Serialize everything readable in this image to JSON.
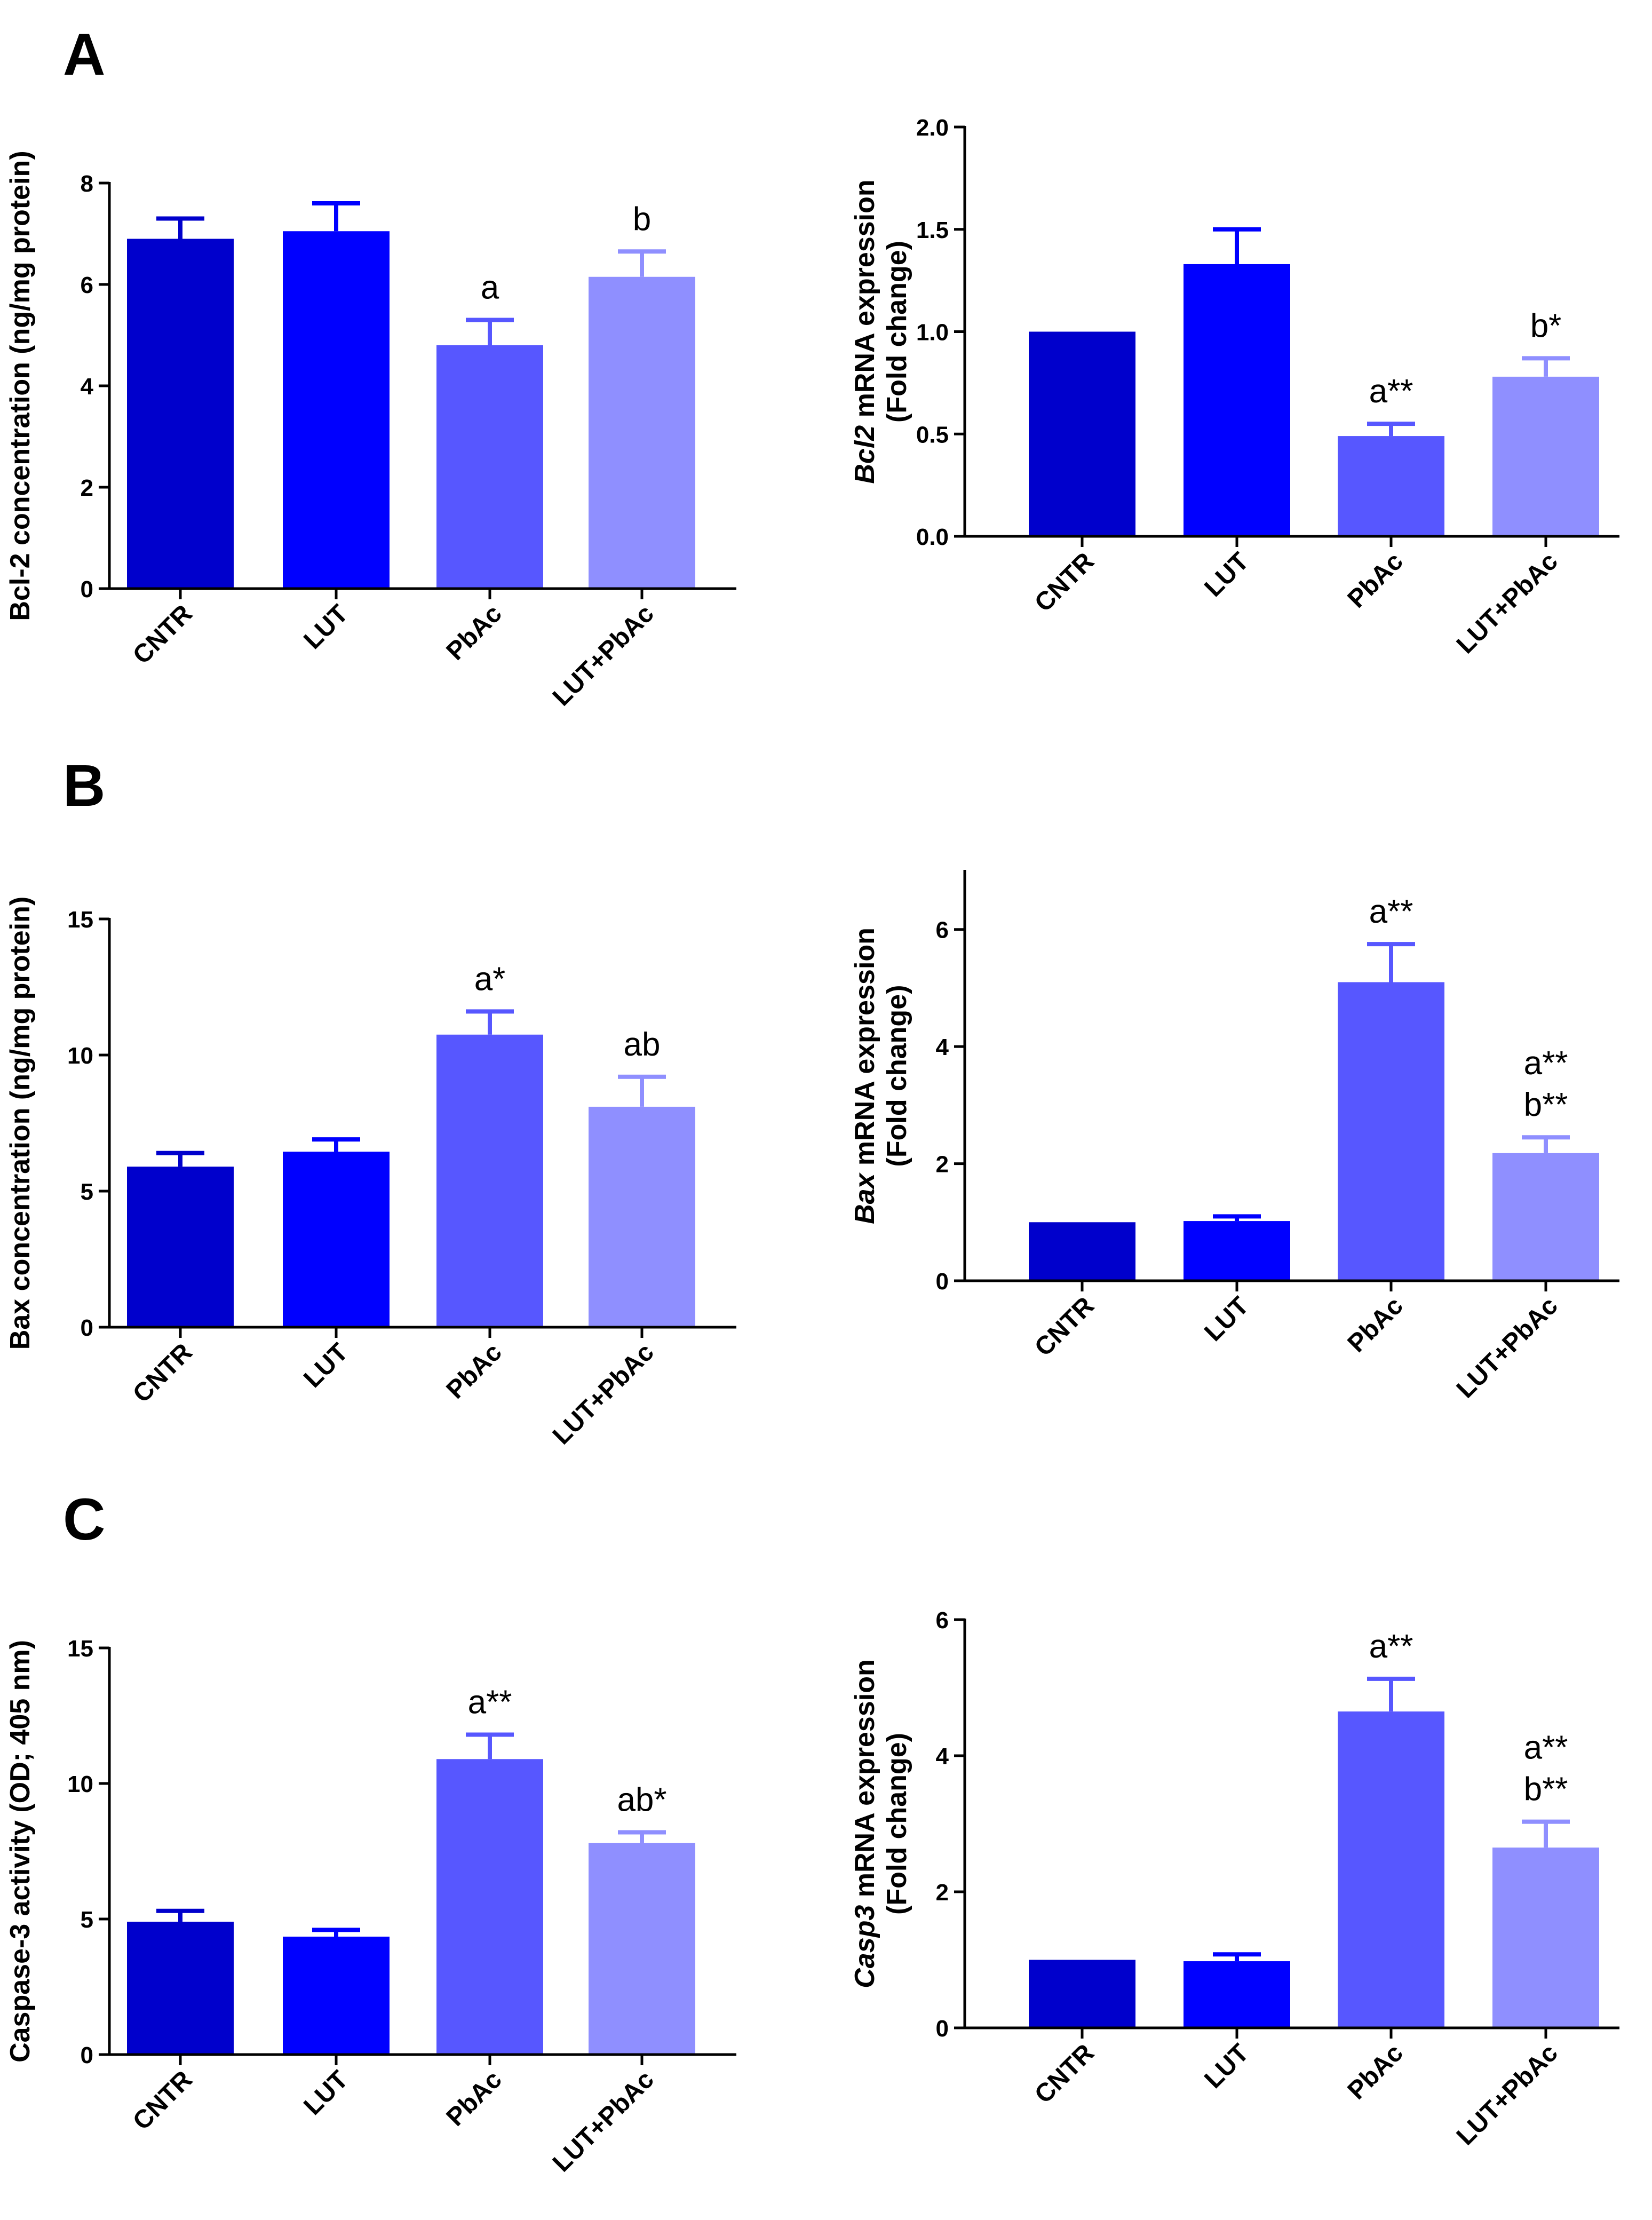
{
  "panels": [
    {
      "letter": "A"
    },
    {
      "letter": "B"
    },
    {
      "letter": "C"
    }
  ],
  "colors": [
    "#0000cc",
    "#0000ff",
    "#5757ff",
    "#8f8fff"
  ],
  "chart_data": [
    {
      "id": "bcl2-protein",
      "panel": "A",
      "type": "bar",
      "categories": [
        "CNTR",
        "LUT",
        "PbAc",
        "LUT+PbAc"
      ],
      "values": [
        6.9,
        7.05,
        4.8,
        6.15
      ],
      "errors": [
        0.4,
        0.55,
        0.5,
        0.5
      ],
      "annotations": [
        [],
        [],
        [
          "a"
        ],
        [
          "b"
        ]
      ],
      "ylabel": [
        {
          "text": "Bcl-2 concentration (ng/mg protein)",
          "italic": false
        }
      ],
      "ylim": [
        0,
        8
      ],
      "yticks": [
        0,
        2,
        4,
        6,
        8
      ],
      "tick_labels": [
        "0",
        "2",
        "4",
        "6",
        "8"
      ]
    },
    {
      "id": "bcl2-mrna",
      "panel": "A",
      "type": "bar",
      "categories": [
        "CNTR",
        "LUT",
        "PbAc",
        "LUT+PbAc"
      ],
      "values": [
        1.0,
        1.33,
        0.49,
        0.78
      ],
      "errors": [
        0.0,
        0.17,
        0.06,
        0.09
      ],
      "annotations": [
        [],
        [],
        [
          "a**"
        ],
        [
          "b*"
        ]
      ],
      "ylabel": [
        {
          "text": "Bcl2",
          "italic": true
        },
        {
          "text": " mRNA expression",
          "italic": false
        }
      ],
      "ylabel2": "(Fold change)",
      "ylim": [
        0,
        2.0
      ],
      "yticks": [
        0,
        0.5,
        1.0,
        1.5,
        2.0
      ],
      "tick_labels": [
        "0.0",
        "0.5",
        "1.0",
        "1.5",
        "2.0"
      ]
    },
    {
      "id": "bax-protein",
      "panel": "B",
      "type": "bar",
      "categories": [
        "CNTR",
        "LUT",
        "PbAc",
        "LUT+PbAc"
      ],
      "values": [
        5.9,
        6.45,
        10.75,
        8.1
      ],
      "errors": [
        0.5,
        0.45,
        0.85,
        1.1
      ],
      "annotations": [
        [],
        [],
        [
          "a*"
        ],
        [
          "ab"
        ]
      ],
      "ylabel": [
        {
          "text": "Bax concentration (ng/mg protein)",
          "italic": false
        }
      ],
      "ylim": [
        0,
        15
      ],
      "yticks": [
        0,
        5,
        10,
        15
      ],
      "tick_labels": [
        "0",
        "5",
        "10",
        "15"
      ]
    },
    {
      "id": "bax-mrna",
      "panel": "B",
      "type": "bar",
      "categories": [
        "CNTR",
        "LUT",
        "PbAc",
        "LUT+PbAc"
      ],
      "values": [
        1.0,
        1.02,
        5.1,
        2.18
      ],
      "errors": [
        0.0,
        0.08,
        0.65,
        0.27
      ],
      "annotations": [
        [],
        [],
        [
          "a**"
        ],
        [
          "a**",
          "b**"
        ]
      ],
      "ylabel": [
        {
          "text": "Bax",
          "italic": true
        },
        {
          "text": " mRNA expression",
          "italic": false
        }
      ],
      "ylabel2": "(Fold change)",
      "ylim": [
        0,
        7
      ],
      "yticks": [
        0,
        2,
        4,
        6
      ],
      "tick_labels": [
        "0",
        "2",
        "4",
        "6"
      ]
    },
    {
      "id": "caspase3-activity",
      "panel": "C",
      "type": "bar",
      "categories": [
        "CNTR",
        "LUT",
        "PbAc",
        "LUT+PbAc"
      ],
      "values": [
        4.9,
        4.35,
        10.9,
        7.8
      ],
      "errors": [
        0.4,
        0.25,
        0.9,
        0.4
      ],
      "annotations": [
        [],
        [],
        [
          "a**"
        ],
        [
          "ab*"
        ]
      ],
      "ylabel": [
        {
          "text": "Caspase-3 activity (OD; 405 nm)",
          "italic": false
        }
      ],
      "ylim": [
        0,
        15
      ],
      "yticks": [
        0,
        5,
        10,
        15
      ],
      "tick_labels": [
        "0",
        "5",
        "10",
        "15"
      ]
    },
    {
      "id": "casp3-mrna",
      "panel": "C",
      "type": "bar",
      "categories": [
        "CNTR",
        "LUT",
        "PbAc",
        "LUT+PbAc"
      ],
      "values": [
        1.0,
        0.98,
        4.65,
        2.65
      ],
      "errors": [
        0.0,
        0.1,
        0.48,
        0.38
      ],
      "annotations": [
        [],
        [],
        [
          "a**"
        ],
        [
          "a**",
          "b**"
        ]
      ],
      "ylabel": [
        {
          "text": "Casp3",
          "italic": true
        },
        {
          "text": " mRNA expression",
          "italic": false
        }
      ],
      "ylabel2": "(Fold change)",
      "ylim": [
        0,
        6
      ],
      "yticks": [
        0,
        2,
        4,
        6
      ],
      "tick_labels": [
        "0",
        "2",
        "4",
        "6"
      ]
    }
  ]
}
